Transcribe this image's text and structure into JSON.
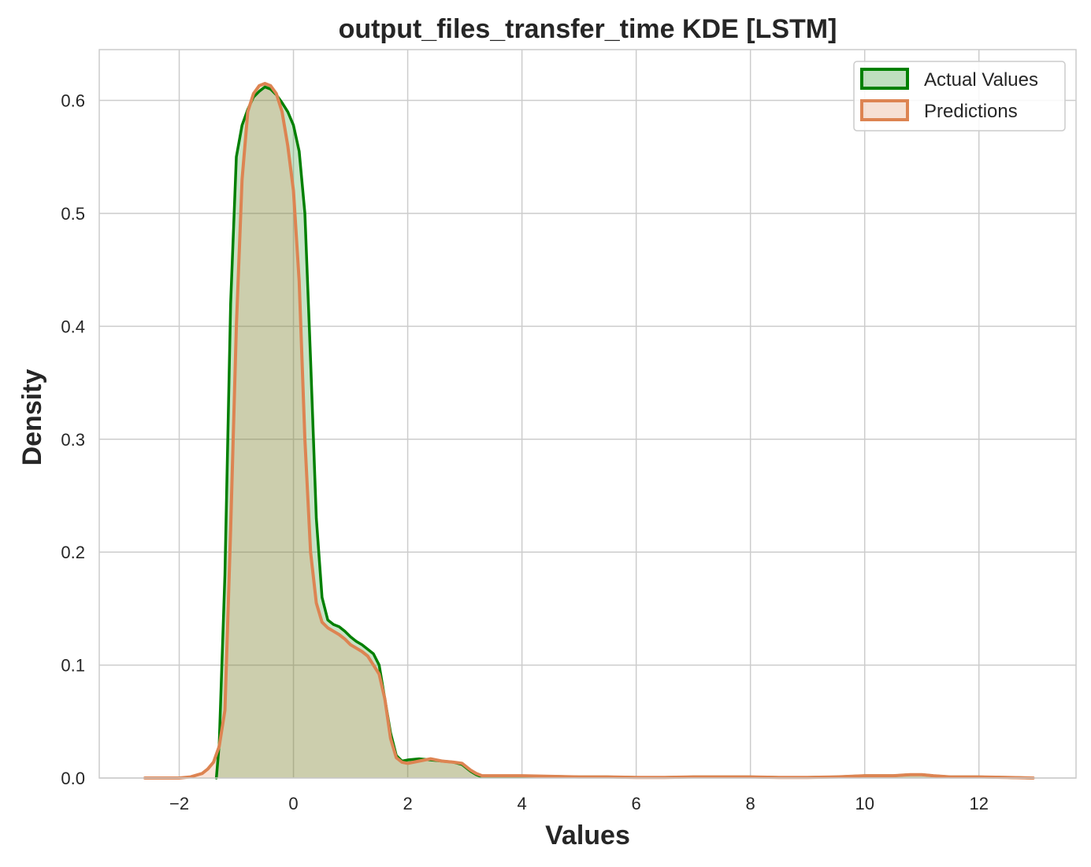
{
  "chart_data": {
    "type": "area",
    "title": "output_files_transfer_time KDE [LSTM]",
    "xlabel": "Values",
    "ylabel": "Density",
    "xlim": [
      -3.4,
      13.7
    ],
    "ylim": [
      0,
      0.645
    ],
    "xticks": [
      -2,
      0,
      2,
      4,
      6,
      8,
      10,
      12
    ],
    "xtick_labels": [
      "−2",
      "0",
      "2",
      "4",
      "6",
      "8",
      "10",
      "12"
    ],
    "yticks": [
      0.0,
      0.1,
      0.2,
      0.3,
      0.4,
      0.5,
      0.6
    ],
    "ytick_labels": [
      "0.0",
      "0.1",
      "0.2",
      "0.3",
      "0.4",
      "0.5",
      "0.6"
    ],
    "grid": true,
    "legend_position": "top-right",
    "series": [
      {
        "name": "Actual Values",
        "color": "#008000",
        "fill_color": "#008000",
        "x": [
          -1.35,
          -1.3,
          -1.2,
          -1.1,
          -1.0,
          -0.9,
          -0.8,
          -0.7,
          -0.6,
          -0.5,
          -0.4,
          -0.3,
          -0.2,
          -0.1,
          0.0,
          0.1,
          0.2,
          0.3,
          0.4,
          0.5,
          0.6,
          0.7,
          0.8,
          0.9,
          1.0,
          1.1,
          1.2,
          1.3,
          1.4,
          1.5,
          1.6,
          1.7,
          1.8,
          1.9,
          2.0,
          2.2,
          2.4,
          2.6,
          2.8,
          2.95,
          3.1,
          3.2,
          3.3,
          3.5,
          4.0,
          4.5,
          5.0,
          5.5,
          6.0,
          6.5,
          7.0,
          7.5,
          8.0,
          8.5,
          9.0,
          9.5,
          10.0,
          10.2,
          10.5,
          10.8,
          11.0,
          11.2,
          11.5,
          12.0,
          12.5,
          12.95
        ],
        "values": [
          0.0,
          0.03,
          0.18,
          0.42,
          0.55,
          0.578,
          0.592,
          0.603,
          0.608,
          0.612,
          0.61,
          0.605,
          0.598,
          0.59,
          0.578,
          0.555,
          0.5,
          0.37,
          0.23,
          0.16,
          0.14,
          0.136,
          0.134,
          0.13,
          0.125,
          0.121,
          0.118,
          0.114,
          0.11,
          0.1,
          0.07,
          0.04,
          0.02,
          0.015,
          0.016,
          0.017,
          0.016,
          0.015,
          0.014,
          0.012,
          0.006,
          0.003,
          0.001,
          0.001,
          0.001,
          0.0015,
          0.001,
          0.001,
          0.0005,
          0.0005,
          0.001,
          0.001,
          0.001,
          0.0005,
          0.0005,
          0.001,
          0.002,
          0.002,
          0.002,
          0.003,
          0.003,
          0.002,
          0.001,
          0.001,
          0.0005,
          0.0
        ]
      },
      {
        "name": "Predictions",
        "color": "#dd8452",
        "fill_color": "#dd8452",
        "x": [
          -2.6,
          -2.0,
          -1.8,
          -1.6,
          -1.5,
          -1.4,
          -1.3,
          -1.2,
          -1.1,
          -1.0,
          -0.9,
          -0.8,
          -0.7,
          -0.6,
          -0.5,
          -0.4,
          -0.3,
          -0.2,
          -0.1,
          0.0,
          0.1,
          0.2,
          0.3,
          0.4,
          0.5,
          0.6,
          0.7,
          0.8,
          0.9,
          1.0,
          1.1,
          1.2,
          1.3,
          1.4,
          1.5,
          1.6,
          1.7,
          1.8,
          1.9,
          2.0,
          2.2,
          2.4,
          2.6,
          2.8,
          2.95,
          3.1,
          3.2,
          3.3,
          3.5,
          4.0,
          4.5,
          5.0,
          5.5,
          6.0,
          6.5,
          7.0,
          7.5,
          8.0,
          8.5,
          9.0,
          9.5,
          10.0,
          10.2,
          10.5,
          10.8,
          11.0,
          11.2,
          11.5,
          12.0,
          12.5,
          12.95
        ],
        "values": [
          0.0,
          0.0,
          0.001,
          0.004,
          0.008,
          0.014,
          0.028,
          0.06,
          0.22,
          0.4,
          0.53,
          0.59,
          0.606,
          0.613,
          0.615,
          0.613,
          0.606,
          0.59,
          0.56,
          0.52,
          0.44,
          0.3,
          0.2,
          0.155,
          0.138,
          0.133,
          0.13,
          0.127,
          0.123,
          0.118,
          0.115,
          0.112,
          0.108,
          0.1,
          0.092,
          0.07,
          0.035,
          0.018,
          0.014,
          0.013,
          0.015,
          0.017,
          0.015,
          0.014,
          0.013,
          0.007,
          0.004,
          0.002,
          0.002,
          0.002,
          0.0015,
          0.001,
          0.001,
          0.0005,
          0.0005,
          0.001,
          0.001,
          0.001,
          0.0005,
          0.0005,
          0.001,
          0.002,
          0.002,
          0.002,
          0.003,
          0.003,
          0.002,
          0.001,
          0.001,
          0.0005,
          0.0
        ]
      }
    ]
  }
}
